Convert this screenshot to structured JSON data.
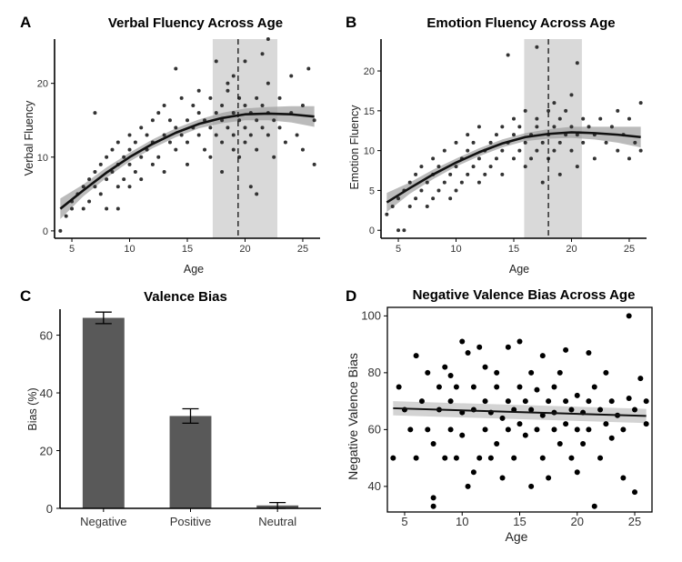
{
  "panels": {
    "A": "A",
    "B": "B",
    "C": "C",
    "D": "D"
  },
  "chart_data": [
    {
      "id": "A",
      "type": "scatter",
      "title": "Verbal Fluency Across Age",
      "xlabel": "Age",
      "ylabel": "Verbal Fluency",
      "xlim": [
        3.5,
        26.5
      ],
      "ylim": [
        -1,
        26
      ],
      "xticks": [
        5,
        10,
        15,
        20,
        25
      ],
      "yticks": [
        0,
        10,
        20
      ],
      "shade_range": [
        17.2,
        22.8
      ],
      "vline": 19.4,
      "fit": {
        "x": [
          4,
          6,
          8,
          10,
          12,
          14,
          16,
          18,
          20,
          22,
          24,
          26
        ],
        "y": [
          3.0,
          5.5,
          7.9,
          10.0,
          11.8,
          13.3,
          14.5,
          15.3,
          15.8,
          15.9,
          15.8,
          15.5
        ]
      },
      "ci": [
        1.4,
        0.8,
        0.7,
        0.6,
        0.6,
        0.6,
        0.6,
        0.7,
        0.8,
        0.9,
        1.1,
        1.4
      ],
      "points": [
        [
          4,
          0
        ],
        [
          4.5,
          2
        ],
        [
          5,
          3
        ],
        [
          5,
          4
        ],
        [
          5.5,
          5
        ],
        [
          6,
          3
        ],
        [
          6,
          6
        ],
        [
          6.5,
          4
        ],
        [
          6.5,
          7
        ],
        [
          7,
          6
        ],
        [
          7,
          8
        ],
        [
          7,
          16
        ],
        [
          7.5,
          5
        ],
        [
          7.5,
          9
        ],
        [
          8,
          7
        ],
        [
          8,
          10
        ],
        [
          8,
          3
        ],
        [
          8.5,
          8
        ],
        [
          8.5,
          11
        ],
        [
          9,
          6
        ],
        [
          9,
          9
        ],
        [
          9,
          12
        ],
        [
          9,
          3
        ],
        [
          9.5,
          10
        ],
        [
          9.5,
          7
        ],
        [
          10,
          9
        ],
        [
          10,
          11
        ],
        [
          10,
          13
        ],
        [
          10,
          6
        ],
        [
          10.5,
          12
        ],
        [
          10.5,
          8
        ],
        [
          11,
          10
        ],
        [
          11,
          14
        ],
        [
          11,
          7
        ],
        [
          11.5,
          11
        ],
        [
          11.5,
          13
        ],
        [
          12,
          12
        ],
        [
          12,
          15
        ],
        [
          12,
          9
        ],
        [
          12.5,
          10
        ],
        [
          12.5,
          16
        ],
        [
          13,
          13
        ],
        [
          13,
          8
        ],
        [
          13,
          17
        ],
        [
          13.5,
          12
        ],
        [
          13.5,
          15
        ],
        [
          14,
          11
        ],
        [
          14,
          14
        ],
        [
          14,
          22
        ],
        [
          14.5,
          13
        ],
        [
          14.5,
          18
        ],
        [
          15,
          12
        ],
        [
          15,
          15
        ],
        [
          15,
          9
        ],
        [
          15.5,
          14
        ],
        [
          15.5,
          17
        ],
        [
          16,
          13
        ],
        [
          16,
          16
        ],
        [
          16,
          19
        ],
        [
          16.5,
          11
        ],
        [
          16.5,
          15
        ],
        [
          17,
          14
        ],
        [
          17,
          18
        ],
        [
          17,
          10
        ],
        [
          17.5,
          16
        ],
        [
          17.5,
          13
        ],
        [
          17.5,
          23
        ],
        [
          18,
          12
        ],
        [
          18,
          15
        ],
        [
          18,
          17
        ],
        [
          18,
          8
        ],
        [
          18.5,
          14
        ],
        [
          18.5,
          19
        ],
        [
          18.5,
          20
        ],
        [
          19,
          11
        ],
        [
          19,
          16
        ],
        [
          19,
          21
        ],
        [
          19,
          13
        ],
        [
          19.5,
          15
        ],
        [
          19.5,
          18
        ],
        [
          19.5,
          10
        ],
        [
          20,
          14
        ],
        [
          20,
          17
        ],
        [
          20,
          12
        ],
        [
          20,
          23
        ],
        [
          20.5,
          16
        ],
        [
          20.5,
          13
        ],
        [
          20.5,
          6
        ],
        [
          21,
          15
        ],
        [
          21,
          18
        ],
        [
          21,
          11
        ],
        [
          21,
          5
        ],
        [
          21.5,
          17
        ],
        [
          21.5,
          14
        ],
        [
          21.5,
          24
        ],
        [
          22,
          16
        ],
        [
          22,
          13
        ],
        [
          22,
          20
        ],
        [
          22,
          26
        ],
        [
          22.5,
          15
        ],
        [
          22.5,
          10
        ],
        [
          23,
          14
        ],
        [
          23,
          18
        ],
        [
          23.5,
          12
        ],
        [
          24,
          16
        ],
        [
          24,
          21
        ],
        [
          24.5,
          13
        ],
        [
          25,
          11
        ],
        [
          25,
          17
        ],
        [
          25.5,
          22
        ],
        [
          26,
          15
        ],
        [
          26,
          9
        ]
      ]
    },
    {
      "id": "B",
      "type": "scatter",
      "title": "Emotion Fluency Across Age",
      "xlabel": "Age",
      "ylabel": "Emotion Fluency",
      "xlim": [
        3.5,
        26.5
      ],
      "ylim": [
        -1,
        24
      ],
      "xticks": [
        5,
        10,
        15,
        20,
        25
      ],
      "yticks": [
        0,
        5,
        10,
        15,
        20
      ],
      "shade_range": [
        15.9,
        20.9
      ],
      "vline": 18.0,
      "fit": {
        "x": [
          4,
          6,
          8,
          10,
          12,
          14,
          16,
          18,
          20,
          22,
          24,
          26
        ],
        "y": [
          3.5,
          5.3,
          7.0,
          8.5,
          9.8,
          10.9,
          11.7,
          12.1,
          12.3,
          12.2,
          12.0,
          11.7
        ]
      },
      "ci": [
        1.2,
        0.7,
        0.6,
        0.5,
        0.5,
        0.5,
        0.5,
        0.6,
        0.7,
        0.8,
        1.0,
        1.3
      ],
      "points": [
        [
          4,
          2
        ],
        [
          4.5,
          3
        ],
        [
          5,
          0
        ],
        [
          5,
          4
        ],
        [
          5.5,
          5
        ],
        [
          5.5,
          0
        ],
        [
          6,
          3
        ],
        [
          6,
          6
        ],
        [
          6.5,
          4
        ],
        [
          6.5,
          7
        ],
        [
          7,
          5
        ],
        [
          7,
          8
        ],
        [
          7.5,
          6
        ],
        [
          7.5,
          3
        ],
        [
          8,
          7
        ],
        [
          8,
          4
        ],
        [
          8,
          9
        ],
        [
          8.5,
          5
        ],
        [
          8.5,
          8
        ],
        [
          9,
          6
        ],
        [
          9,
          10
        ],
        [
          9.5,
          7
        ],
        [
          9.5,
          4
        ],
        [
          10,
          8
        ],
        [
          10,
          11
        ],
        [
          10,
          5
        ],
        [
          10.5,
          9
        ],
        [
          10.5,
          6
        ],
        [
          11,
          10
        ],
        [
          11,
          7
        ],
        [
          11,
          12
        ],
        [
          11.5,
          8
        ],
        [
          11.5,
          11
        ],
        [
          12,
          9
        ],
        [
          12,
          6
        ],
        [
          12,
          13
        ],
        [
          12.5,
          10
        ],
        [
          12.5,
          7
        ],
        [
          13,
          11
        ],
        [
          13,
          8
        ],
        [
          13.5,
          12
        ],
        [
          13.5,
          9
        ],
        [
          14,
          10
        ],
        [
          14,
          13
        ],
        [
          14,
          7
        ],
        [
          14.5,
          11
        ],
        [
          14.5,
          22
        ],
        [
          15,
          12
        ],
        [
          15,
          9
        ],
        [
          15,
          14
        ],
        [
          15.5,
          10
        ],
        [
          15.5,
          13
        ],
        [
          16,
          11
        ],
        [
          16,
          8
        ],
        [
          16,
          15
        ],
        [
          16.5,
          12
        ],
        [
          16.5,
          9
        ],
        [
          17,
          13
        ],
        [
          17,
          10
        ],
        [
          17,
          14
        ],
        [
          17,
          23
        ],
        [
          17.5,
          11
        ],
        [
          17.5,
          6
        ],
        [
          18,
          12
        ],
        [
          18,
          15
        ],
        [
          18,
          9
        ],
        [
          18.5,
          13
        ],
        [
          18.5,
          10
        ],
        [
          18.5,
          16
        ],
        [
          19,
          11
        ],
        [
          19,
          14
        ],
        [
          19,
          7
        ],
        [
          19.5,
          12
        ],
        [
          19.5,
          15
        ],
        [
          20,
          13
        ],
        [
          20,
          10
        ],
        [
          20,
          17
        ],
        [
          20.5,
          21
        ],
        [
          20.5,
          12
        ],
        [
          20.5,
          8
        ],
        [
          21,
          14
        ],
        [
          21,
          11
        ],
        [
          21.5,
          13
        ],
        [
          22,
          12
        ],
        [
          22,
          9
        ],
        [
          22.5,
          14
        ],
        [
          23,
          11
        ],
        [
          23.5,
          13
        ],
        [
          24,
          10
        ],
        [
          24,
          15
        ],
        [
          24.5,
          12
        ],
        [
          25,
          9
        ],
        [
          25,
          14
        ],
        [
          25.5,
          11
        ],
        [
          26,
          16
        ],
        [
          26,
          10
        ]
      ]
    },
    {
      "id": "C",
      "type": "bar",
      "title": "Valence Bias",
      "xlabel": "",
      "ylabel": "Bias (%)",
      "categories": [
        "Negative",
        "Positive",
        "Neutral"
      ],
      "values": [
        66,
        32,
        1
      ],
      "errors": [
        2,
        2.5,
        1
      ],
      "ylim": [
        0,
        69
      ],
      "yticks": [
        0,
        20,
        40,
        60
      ],
      "bar_color": "#595959"
    },
    {
      "id": "D",
      "type": "scatter",
      "title": "Negative Valence Bias Across Age",
      "xlabel": "Age",
      "ylabel": "Negative Valence Bias",
      "xlim": [
        3.5,
        26.5
      ],
      "ylim": [
        31,
        103
      ],
      "xticks": [
        5,
        10,
        15,
        20,
        25
      ],
      "yticks": [
        40,
        60,
        80,
        100
      ],
      "fit": {
        "x": [
          4,
          26
        ],
        "y": [
          67.5,
          64.8
        ]
      },
      "ci": [
        2.5,
        2.5
      ],
      "points": [
        [
          4,
          50
        ],
        [
          4.5,
          75
        ],
        [
          5,
          67
        ],
        [
          5.5,
          60
        ],
        [
          6,
          86
        ],
        [
          6,
          50
        ],
        [
          6.5,
          70
        ],
        [
          7,
          80
        ],
        [
          7,
          60
        ],
        [
          7.5,
          36
        ],
        [
          7.5,
          33
        ],
        [
          7.5,
          55
        ],
        [
          8,
          75
        ],
        [
          8,
          67
        ],
        [
          8.5,
          50
        ],
        [
          8.5,
          82
        ],
        [
          9,
          60
        ],
        [
          9,
          70
        ],
        [
          9,
          79
        ],
        [
          9.5,
          50
        ],
        [
          9.5,
          75
        ],
        [
          10,
          66
        ],
        [
          10,
          58
        ],
        [
          10,
          91
        ],
        [
          10.5,
          40
        ],
        [
          10.5,
          87
        ],
        [
          11,
          67
        ],
        [
          11,
          75
        ],
        [
          11,
          45
        ],
        [
          11.5,
          50
        ],
        [
          11.5,
          89
        ],
        [
          12,
          60
        ],
        [
          12,
          70
        ],
        [
          12,
          82
        ],
        [
          12.5,
          66
        ],
        [
          12.5,
          50
        ],
        [
          13,
          75
        ],
        [
          13,
          55
        ],
        [
          13,
          80
        ],
        [
          13.5,
          64
        ],
        [
          13.5,
          43
        ],
        [
          14,
          70
        ],
        [
          14,
          60
        ],
        [
          14,
          89
        ],
        [
          14.5,
          67
        ],
        [
          14.5,
          50
        ],
        [
          15,
          75
        ],
        [
          15,
          91
        ],
        [
          15,
          62
        ],
        [
          15.5,
          70
        ],
        [
          15.5,
          58
        ],
        [
          16,
          67
        ],
        [
          16,
          40
        ],
        [
          16,
          80
        ],
        [
          16.5,
          60
        ],
        [
          16.5,
          74
        ],
        [
          17,
          65
        ],
        [
          17,
          86
        ],
        [
          17,
          50
        ],
        [
          17.5,
          70
        ],
        [
          17.5,
          43
        ],
        [
          18,
          66
        ],
        [
          18,
          60
        ],
        [
          18,
          75
        ],
        [
          18.5,
          55
        ],
        [
          18.5,
          80
        ],
        [
          19,
          70
        ],
        [
          19,
          62
        ],
        [
          19,
          88
        ],
        [
          19.5,
          50
        ],
        [
          19.5,
          67
        ],
        [
          20,
          60
        ],
        [
          20,
          72
        ],
        [
          20,
          45
        ],
        [
          20.5,
          66
        ],
        [
          20.5,
          55
        ],
        [
          21,
          70
        ],
        [
          21,
          87
        ],
        [
          21,
          60
        ],
        [
          21.5,
          33
        ],
        [
          21.5,
          75
        ],
        [
          22,
          67
        ],
        [
          22,
          50
        ],
        [
          22.5,
          62
        ],
        [
          22.5,
          80
        ],
        [
          23,
          70
        ],
        [
          23,
          57
        ],
        [
          23.5,
          65
        ],
        [
          24,
          60
        ],
        [
          24,
          43
        ],
        [
          24.5,
          71
        ],
        [
          24.5,
          100
        ],
        [
          25,
          67
        ],
        [
          25,
          38
        ],
        [
          25.5,
          78
        ],
        [
          26,
          62
        ],
        [
          26,
          70
        ]
      ]
    }
  ]
}
